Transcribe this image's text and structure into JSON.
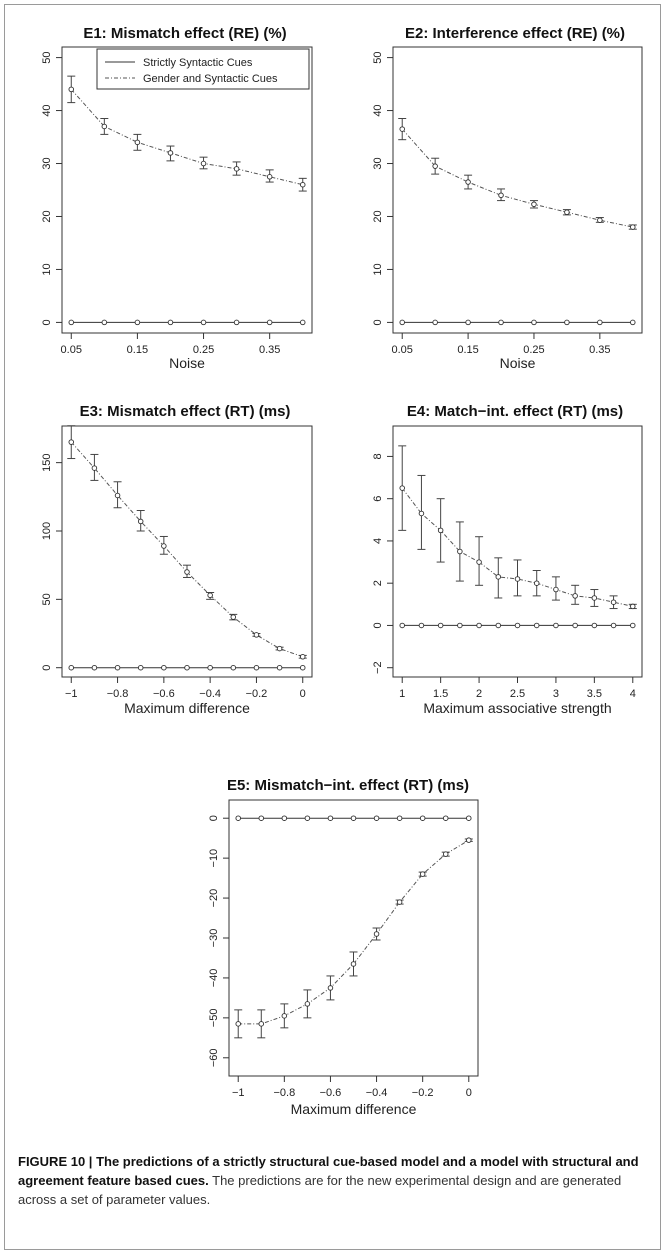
{
  "figure_label": "FIGURE 10 |",
  "caption_bold": "The predictions of a strictly structural cue-based model and a model with structural and agreement feature based cues.",
  "caption_rest": "The predictions are for the new experimental design and are generated across a set of parameter values.",
  "legend": {
    "solid": "Strictly Syntactic Cues",
    "dashed": "Gender and Syntactic Cues"
  },
  "chart_data": [
    {
      "type": "line",
      "title": "E1: Mismatch effect (RE) (%)",
      "xlabel": "Noise",
      "ylabel": "",
      "xlim": [
        0.05,
        0.4
      ],
      "ylim": [
        0,
        50
      ],
      "xticks": [
        0.05,
        0.15,
        0.25,
        0.35
      ],
      "xtick_labels": [
        "0.05",
        "0.15",
        "0.25",
        "0.35"
      ],
      "yticks": [
        0,
        10,
        20,
        30,
        40,
        50
      ],
      "ytick_labels": [
        "0",
        "10",
        "20",
        "30",
        "40",
        "50"
      ],
      "x": [
        0.05,
        0.1,
        0.15,
        0.2,
        0.25,
        0.3,
        0.35,
        0.4
      ],
      "series": [
        {
          "name": "Strictly Syntactic Cues",
          "style": "solid",
          "values": [
            0,
            0,
            0,
            0,
            0,
            0,
            0,
            0
          ]
        },
        {
          "name": "Gender and Syntactic Cues",
          "style": "dashed",
          "values": [
            44,
            37,
            34,
            32,
            30,
            29,
            27.5,
            26
          ],
          "err_low": [
            41.5,
            35.5,
            32.5,
            30.5,
            29,
            27.8,
            26.5,
            24.8
          ],
          "err_high": [
            46.5,
            38.5,
            35.5,
            33.3,
            31.2,
            30.3,
            28.8,
            27.2
          ]
        }
      ]
    },
    {
      "type": "line",
      "title": "E2: Interference effect (RE) (%)",
      "xlabel": "Noise",
      "ylabel": "",
      "xlim": [
        0.05,
        0.4
      ],
      "ylim": [
        0,
        50
      ],
      "xticks": [
        0.05,
        0.15,
        0.25,
        0.35
      ],
      "xtick_labels": [
        "0.05",
        "0.15",
        "0.25",
        "0.35"
      ],
      "yticks": [
        0,
        10,
        20,
        30,
        40,
        50
      ],
      "ytick_labels": [
        "0",
        "10",
        "20",
        "30",
        "40",
        "50"
      ],
      "x": [
        0.05,
        0.1,
        0.15,
        0.2,
        0.25,
        0.3,
        0.35,
        0.4
      ],
      "series": [
        {
          "name": "Strictly Syntactic Cues",
          "style": "solid",
          "values": [
            0,
            0,
            0,
            0,
            0,
            0,
            0,
            0
          ]
        },
        {
          "name": "Gender and Syntactic Cues",
          "style": "dashed",
          "values": [
            36.5,
            29.5,
            26.5,
            24,
            22.3,
            20.8,
            19.3,
            18
          ],
          "err_low": [
            34.5,
            28,
            25.2,
            23,
            21.6,
            20.3,
            18.9,
            17.6
          ],
          "err_high": [
            38.5,
            31,
            27.8,
            25.2,
            23,
            21.3,
            19.8,
            18.4
          ]
        }
      ]
    },
    {
      "type": "line",
      "title": "E3: Mismatch effect (RT) (ms)",
      "xlabel": "Maximum difference",
      "ylabel": "",
      "xlim": [
        -1,
        0
      ],
      "ylim": [
        0,
        170
      ],
      "xticks": [
        -1,
        -0.8,
        -0.6,
        -0.4,
        -0.2,
        0
      ],
      "xtick_labels": [
        "−1",
        "−0.8",
        "−0.6",
        "−0.4",
        "−0.2",
        "0"
      ],
      "yticks": [
        0,
        50,
        100,
        150
      ],
      "ytick_labels": [
        "0",
        "50",
        "100",
        "150"
      ],
      "x": [
        -1,
        -0.9,
        -0.8,
        -0.7,
        -0.6,
        -0.5,
        -0.4,
        -0.3,
        -0.2,
        -0.1,
        0
      ],
      "series": [
        {
          "name": "Strictly Syntactic Cues",
          "style": "solid",
          "values": [
            0,
            0,
            0,
            0,
            0,
            0,
            0,
            0,
            0,
            0,
            0
          ]
        },
        {
          "name": "Gender and Syntactic Cues",
          "style": "dashed",
          "values": [
            165,
            146,
            126,
            107,
            89,
            70,
            53,
            37,
            24,
            14,
            8
          ],
          "err_low": [
            153,
            137,
            117,
            100,
            83,
            66,
            50,
            35,
            23,
            13,
            7
          ],
          "err_high": [
            177,
            156,
            136,
            115,
            96,
            75,
            55,
            39,
            25,
            15,
            9
          ]
        }
      ]
    },
    {
      "type": "line",
      "title": "E4: Match−int. effect (RT) (ms)",
      "xlabel": "Maximum associative strength",
      "ylabel": "",
      "xlim": [
        1,
        4
      ],
      "ylim": [
        -2,
        9
      ],
      "xticks": [
        1,
        1.5,
        2,
        2.5,
        3,
        3.5,
        4
      ],
      "xtick_labels": [
        "1",
        "1.5",
        "2",
        "2.5",
        "3",
        "3.5",
        "4"
      ],
      "yticks": [
        -2,
        0,
        2,
        4,
        6,
        8
      ],
      "ytick_labels": [
        "−2",
        "0",
        "2",
        "4",
        "6",
        "8"
      ],
      "x": [
        1,
        1.25,
        1.5,
        1.75,
        2,
        2.25,
        2.5,
        2.75,
        3,
        3.25,
        3.5,
        3.75,
        4
      ],
      "series": [
        {
          "name": "Strictly Syntactic Cues",
          "style": "solid",
          "values": [
            0,
            0,
            0,
            0,
            0,
            0,
            0,
            0,
            0,
            0,
            0,
            0,
            0
          ]
        },
        {
          "name": "Gender and Syntactic Cues",
          "style": "dashed",
          "values": [
            6.5,
            5.3,
            4.5,
            3.5,
            3.0,
            2.3,
            2.2,
            2.0,
            1.7,
            1.4,
            1.3,
            1.1,
            0.9
          ],
          "err_low": [
            4.5,
            3.6,
            3.0,
            2.1,
            1.9,
            1.3,
            1.4,
            1.4,
            1.2,
            1.0,
            0.9,
            0.8,
            0.8
          ],
          "err_high": [
            8.5,
            7.1,
            6.0,
            4.9,
            4.2,
            3.2,
            3.1,
            2.6,
            2.3,
            1.9,
            1.7,
            1.4,
            1.0
          ]
        }
      ]
    },
    {
      "type": "line",
      "title": "E5: Mismatch−int. effect (RT) (ms)",
      "xlabel": "Maximum difference",
      "ylabel": "",
      "xlim": [
        -1,
        0
      ],
      "ylim": [
        -62,
        2
      ],
      "xticks": [
        -1,
        -0.8,
        -0.6,
        -0.4,
        -0.2,
        0
      ],
      "xtick_labels": [
        "−1",
        "−0.8",
        "−0.6",
        "−0.4",
        "−0.2",
        "0"
      ],
      "yticks": [
        -60,
        -50,
        -40,
        -30,
        -20,
        -10,
        0
      ],
      "ytick_labels": [
        "−60",
        "−50",
        "−40",
        "−30",
        "−20",
        "−10",
        "0"
      ],
      "x": [
        -1,
        -0.9,
        -0.8,
        -0.7,
        -0.6,
        -0.5,
        -0.4,
        -0.3,
        -0.2,
        -0.1,
        0
      ],
      "series": [
        {
          "name": "Strictly Syntactic Cues",
          "style": "solid",
          "values": [
            0,
            0,
            0,
            0,
            0,
            0,
            0,
            0,
            0,
            0,
            0
          ]
        },
        {
          "name": "Gender and Syntactic Cues",
          "style": "dashed",
          "values": [
            -51.5,
            -51.5,
            -49.5,
            -46.5,
            -42.5,
            -36.5,
            -29,
            -21,
            -14,
            -9,
            -5.5
          ],
          "err_low": [
            -55,
            -55,
            -52.5,
            -50,
            -45.5,
            -39.5,
            -30.5,
            -21.5,
            -14.5,
            -9.5,
            -5.8
          ],
          "err_high": [
            -48,
            -48,
            -46.5,
            -43,
            -39.5,
            -33.5,
            -27.5,
            -20.5,
            -13.5,
            -8.5,
            -5.2
          ]
        }
      ]
    }
  ]
}
